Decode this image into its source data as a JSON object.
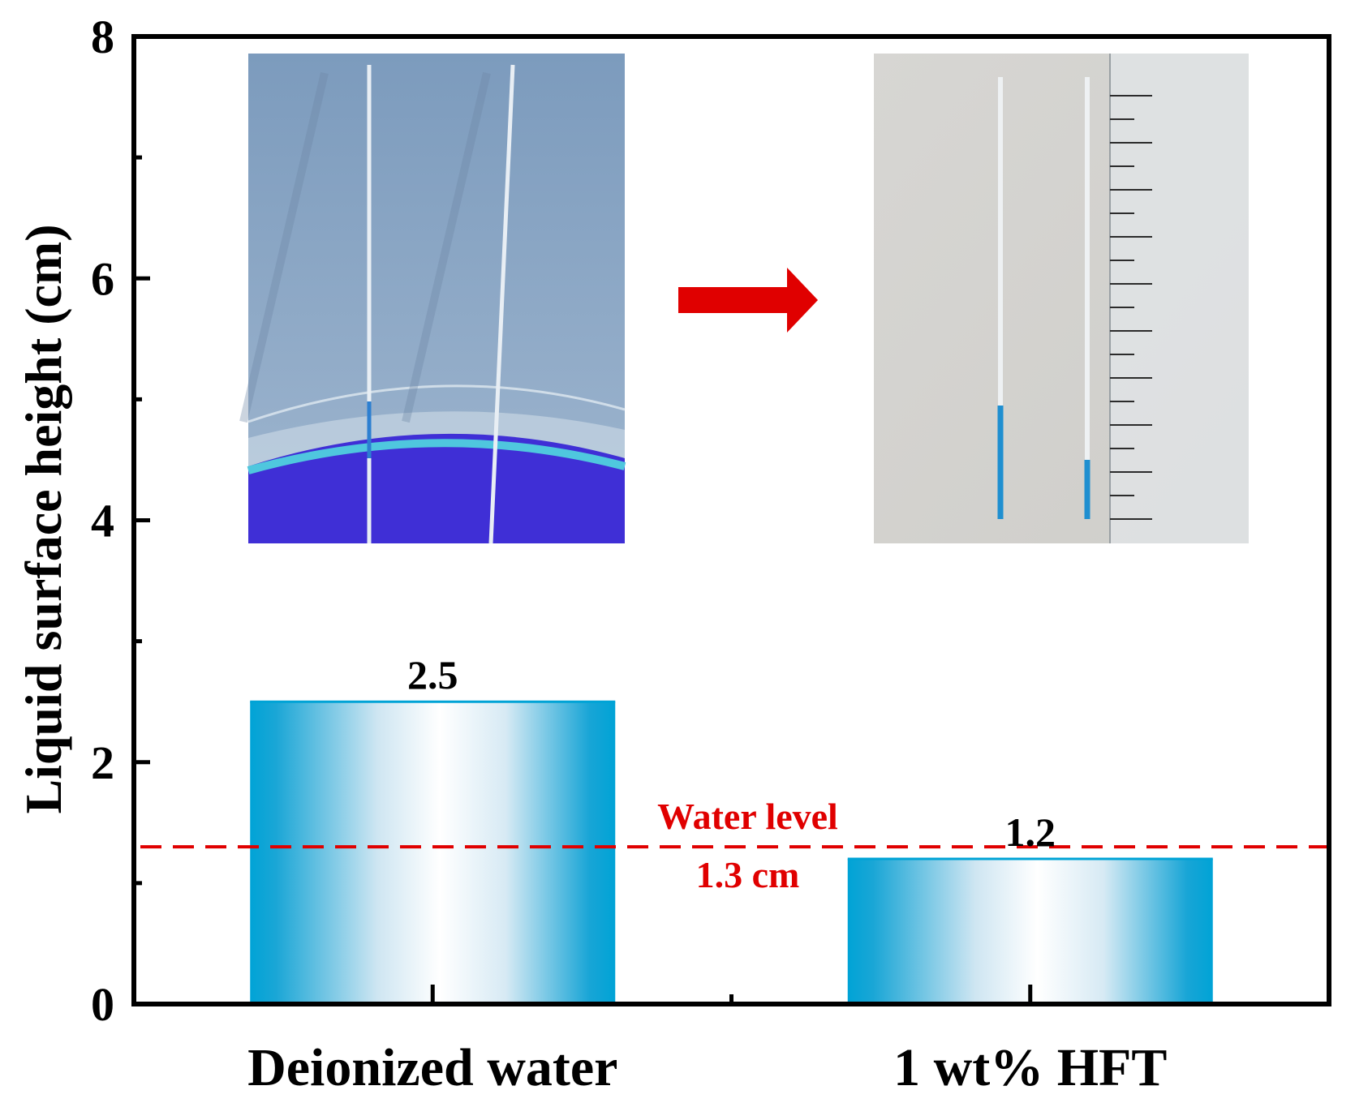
{
  "chart_data": {
    "type": "bar",
    "categories": [
      "Deionized water",
      "1 wt% HFT"
    ],
    "values": [
      2.5,
      1.2
    ],
    "data_labels": [
      "2.5",
      "1.2"
    ],
    "xlabel": "",
    "ylabel": "Liquid surface height (cm)",
    "ylim": [
      0,
      8
    ],
    "yticks": [
      0,
      2,
      4,
      6,
      8
    ],
    "ytick_labels": [
      "0",
      "2",
      "4",
      "6",
      "8"
    ],
    "grid": false,
    "reference_line": {
      "value": 1.3,
      "style": "dashed",
      "color": "#e00000",
      "label_line1": "Water level",
      "label_line2": "1.3 cm"
    },
    "bar_colors": {
      "edge": "#00a3d6",
      "center": "#ffffff"
    },
    "insets": [
      {
        "name": "photo-capillary-tubes-in-dish",
        "position": "top-left"
      },
      {
        "name": "photo-tubes-with-ruler",
        "position": "top-right"
      }
    ],
    "arrow_color": "#e00000"
  }
}
